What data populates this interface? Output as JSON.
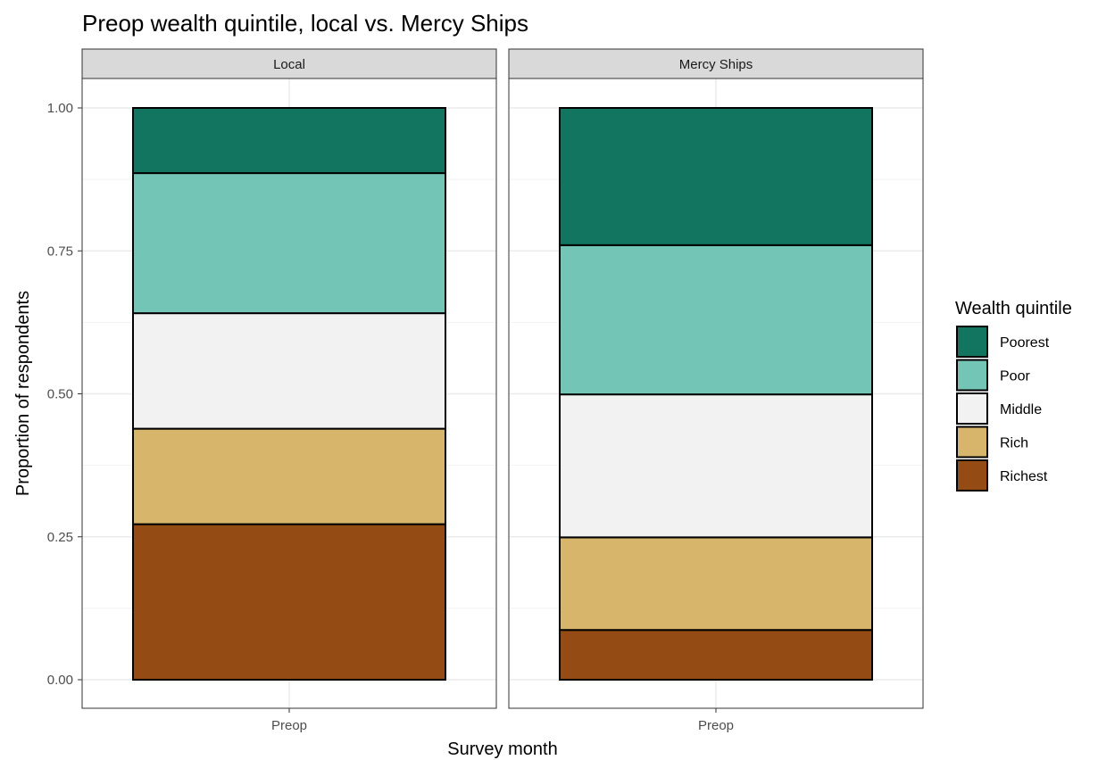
{
  "chart_data": {
    "type": "bar",
    "stacked": true,
    "title": "Preop wealth quintile, local vs. Mercy Ships",
    "xlabel": "Survey month",
    "ylabel": "Proportion of respondents",
    "ylim": [
      0,
      1
    ],
    "yticks": [
      "0.00",
      "0.25",
      "0.50",
      "0.75",
      "1.00"
    ],
    "categories": [
      "Preop"
    ],
    "grid": true,
    "legend": {
      "title": "Wealth quintile",
      "placement": "right",
      "order": [
        "Poorest",
        "Poor",
        "Middle",
        "Rich",
        "Richest"
      ]
    },
    "colors": {
      "Poorest": "#11755f",
      "Poor": "#73c5b6",
      "Middle": "#f2f2f2",
      "Rich": "#d7b56a",
      "Richest": "#944b14"
    },
    "panels": [
      {
        "name": "Local",
        "series": [
          {
            "name": "Richest",
            "values": [
              0.272
            ]
          },
          {
            "name": "Rich",
            "values": [
              0.167
            ]
          },
          {
            "name": "Middle",
            "values": [
              0.202
            ]
          },
          {
            "name": "Poor",
            "values": [
              0.245
            ]
          },
          {
            "name": "Poorest",
            "values": [
              0.114
            ]
          }
        ]
      },
      {
        "name": "Mercy Ships",
        "series": [
          {
            "name": "Richest",
            "values": [
              0.087
            ]
          },
          {
            "name": "Rich",
            "values": [
              0.162
            ]
          },
          {
            "name": "Middle",
            "values": [
              0.25
            ]
          },
          {
            "name": "Poor",
            "values": [
              0.261
            ]
          },
          {
            "name": "Poorest",
            "values": [
              0.24
            ]
          }
        ]
      }
    ]
  }
}
